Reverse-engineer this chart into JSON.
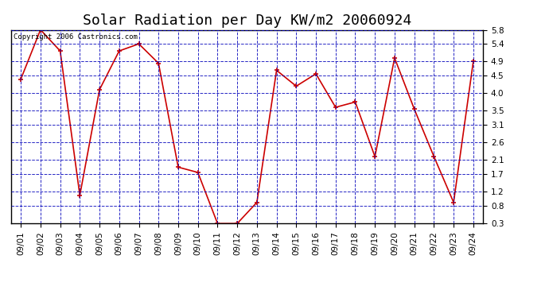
{
  "title": "Solar Radiation per Day KW/m2 20060924",
  "copyright": "Copyright 2006 Castronics.com",
  "dates": [
    "09/01",
    "09/02",
    "09/03",
    "09/04",
    "09/05",
    "09/06",
    "09/07",
    "09/08",
    "09/09",
    "09/10",
    "09/11",
    "09/12",
    "09/13",
    "09/14",
    "09/15",
    "09/16",
    "09/17",
    "09/18",
    "09/19",
    "09/20",
    "09/21",
    "09/22",
    "09/23",
    "09/24"
  ],
  "values": [
    4.4,
    5.8,
    5.2,
    1.1,
    4.1,
    5.2,
    5.4,
    4.85,
    1.9,
    1.75,
    0.3,
    0.3,
    0.9,
    4.65,
    4.2,
    4.55,
    3.6,
    3.75,
    2.2,
    5.0,
    3.55,
    2.2,
    0.9,
    4.9
  ],
  "ylim": [
    0.3,
    5.8
  ],
  "yticks": [
    0.3,
    0.8,
    1.2,
    1.7,
    2.1,
    2.6,
    3.1,
    3.5,
    4.0,
    4.5,
    4.9,
    5.4,
    5.8
  ],
  "line_color": "#cc0000",
  "marker_color": "#cc0000",
  "bg_color": "#ffffff",
  "plot_bg_color": "#ffffff",
  "grid_color": "#0000bb",
  "title_fontsize": 13,
  "tick_fontsize": 7.5,
  "copyright_fontsize": 6.5
}
